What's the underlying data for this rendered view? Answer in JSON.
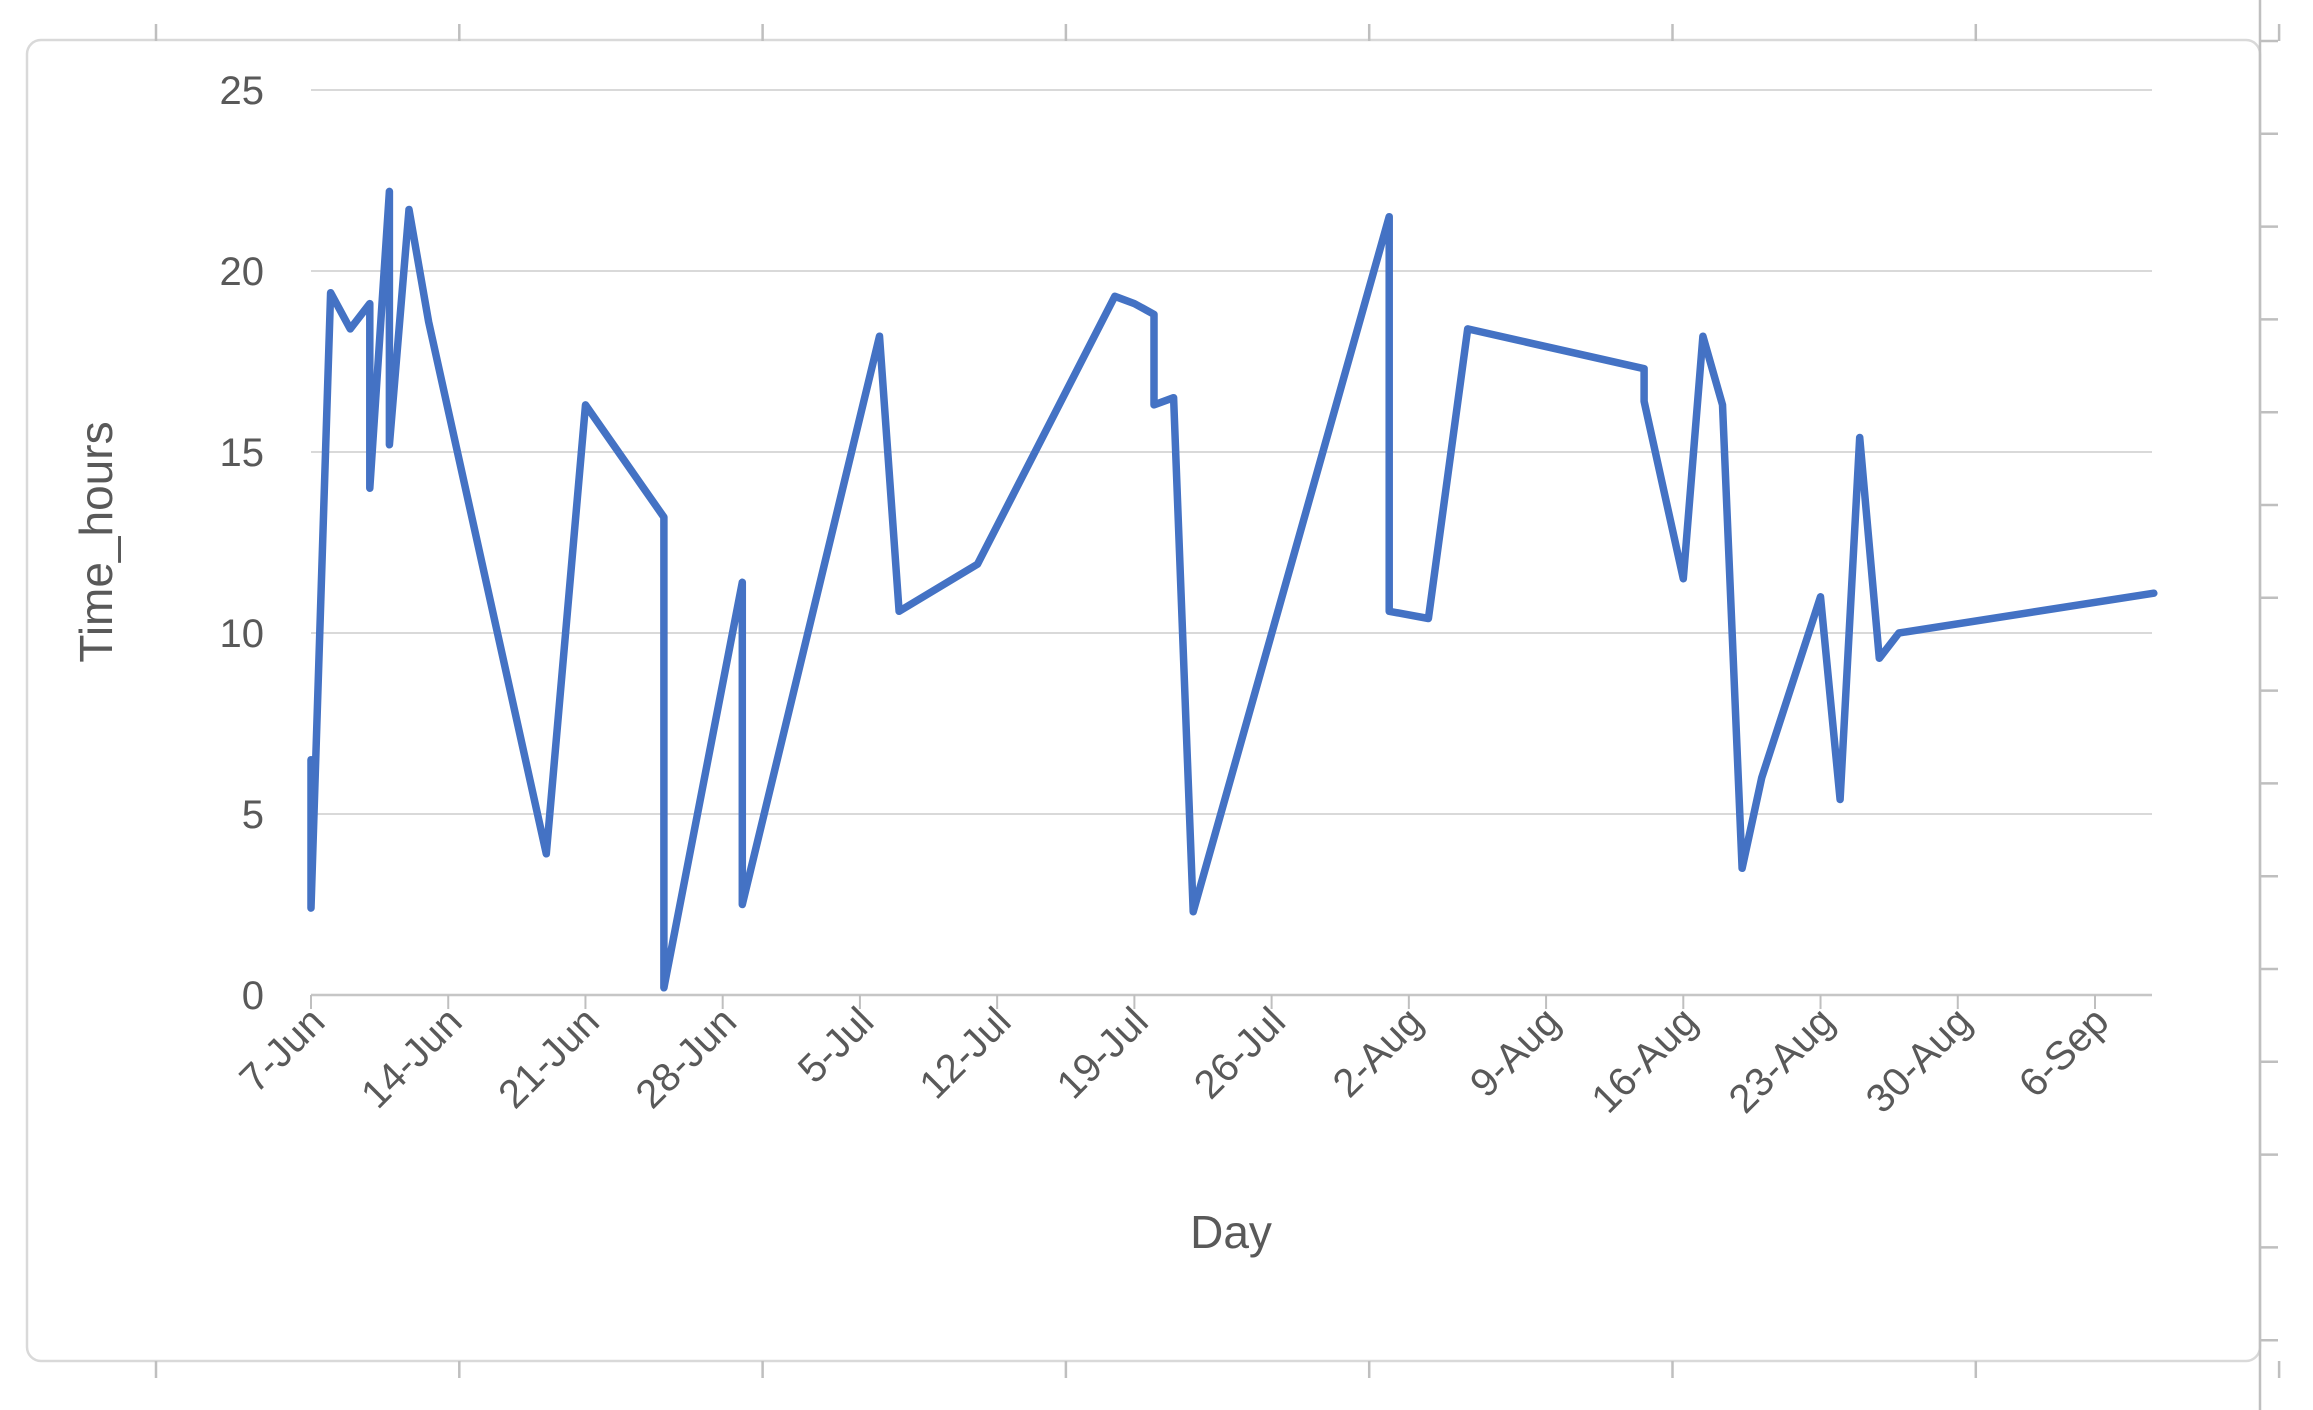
{
  "chart_data": {
    "type": "line",
    "title": "",
    "xlabel": "Day",
    "ylabel": "Time_hours",
    "ylim": [
      0,
      25
    ],
    "y_ticks": [
      "0",
      "5",
      "10",
      "15",
      "20",
      "25"
    ],
    "x_tick_labels": [
      "7-Jun",
      "14-Jun",
      "21-Jun",
      "28-Jun",
      "5-Jul",
      "12-Jul",
      "19-Jul",
      "26-Jul",
      "2-Aug",
      "9-Aug",
      "16-Aug",
      "23-Aug",
      "30-Aug",
      "6-Sep"
    ],
    "x_tick_interval_days": 7,
    "grid": "horizontal-only",
    "legend": "none",
    "axis_date_origin": "7-Jun",
    "series": [
      {
        "name": "Time_hours",
        "color": "#4472C4",
        "points": [
          {
            "date": "7-Jun",
            "hours": 6.5
          },
          {
            "date": "7-Jun",
            "hours": 2.4
          },
          {
            "date": "8-Jun",
            "hours": 19.4
          },
          {
            "date": "9-Jun",
            "hours": 18.4
          },
          {
            "date": "10-Jun",
            "hours": 19.1
          },
          {
            "date": "10-Jun",
            "hours": 14.0
          },
          {
            "date": "11-Jun",
            "hours": 22.2
          },
          {
            "date": "11-Jun",
            "hours": 15.2
          },
          {
            "date": "12-Jun",
            "hours": 21.7
          },
          {
            "date": "13-Jun",
            "hours": 18.6
          },
          {
            "date": "19-Jun",
            "hours": 3.9
          },
          {
            "date": "21-Jun",
            "hours": 16.3
          },
          {
            "date": "25-Jun",
            "hours": 13.2
          },
          {
            "date": "25-Jun",
            "hours": 0.2
          },
          {
            "date": "29-Jun",
            "hours": 11.4
          },
          {
            "date": "29-Jun",
            "hours": 2.5
          },
          {
            "date": "6-Jul",
            "hours": 18.2
          },
          {
            "date": "7-Jul",
            "hours": 10.6
          },
          {
            "date": "11-Jul",
            "hours": 11.9
          },
          {
            "date": "18-Jul",
            "hours": 19.3
          },
          {
            "date": "19-Jul",
            "hours": 19.1
          },
          {
            "date": "20-Jul",
            "hours": 18.8
          },
          {
            "date": "20-Jul",
            "hours": 16.3
          },
          {
            "date": "21-Jul",
            "hours": 16.5
          },
          {
            "date": "22-Jul",
            "hours": 2.3
          },
          {
            "date": "1-Aug",
            "hours": 21.5
          },
          {
            "date": "1-Aug",
            "hours": 10.6
          },
          {
            "date": "3-Aug",
            "hours": 10.4
          },
          {
            "date": "5-Aug",
            "hours": 18.4
          },
          {
            "date": "14-Aug",
            "hours": 17.3
          },
          {
            "date": "14-Aug",
            "hours": 16.4
          },
          {
            "date": "16-Aug",
            "hours": 11.5
          },
          {
            "date": "17-Aug",
            "hours": 18.2
          },
          {
            "date": "18-Aug",
            "hours": 16.3
          },
          {
            "date": "19-Aug",
            "hours": 3.5
          },
          {
            "date": "20-Aug",
            "hours": 6.0
          },
          {
            "date": "23-Aug",
            "hours": 11.0
          },
          {
            "date": "24-Aug",
            "hours": 5.4
          },
          {
            "date": "25-Aug",
            "hours": 15.4
          },
          {
            "date": "26-Aug",
            "hours": 9.3
          },
          {
            "date": "27-Aug",
            "hours": 10.0
          },
          {
            "date": "9-Sep",
            "hours": 11.1
          }
        ]
      }
    ]
  },
  "colors": {
    "series_line": "#4472C4",
    "gridline": "#D9D9D9",
    "axis_line": "#C6C6C6",
    "tick_mark": "#BFBFBF",
    "label_text": "#595959",
    "frame_border": "#D9D9D9",
    "background": "#FFFFFF"
  },
  "screenshot_edge_artifacts": {
    "top_edge_tick_count": 8,
    "bottom_edge_tick_count": 8,
    "right_edge_tick_count": 15,
    "note": "clipped tick marks of adjacent charts visible at top, bottom and right edges of the screenshot"
  }
}
